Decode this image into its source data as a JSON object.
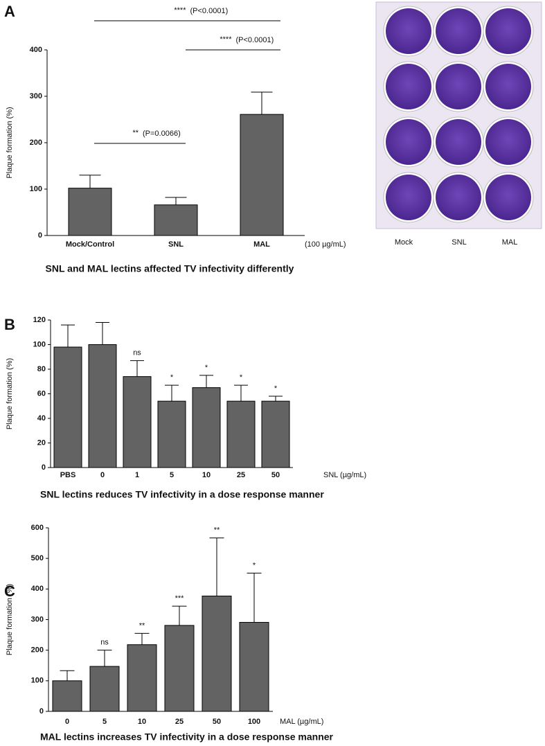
{
  "chart_data": [
    {
      "type": "bar",
      "panel": "A",
      "ylabel": "Plaque formation (%)",
      "categories": [
        "Mock/Control",
        "SNL",
        "MAL"
      ],
      "values": [
        102,
        66,
        261
      ],
      "errors": [
        28,
        16,
        48
      ],
      "color": "#636363",
      "xlabel": "(100 µg/mL)",
      "ylim": [
        0,
        400
      ],
      "yticks": [
        0,
        100,
        200,
        300,
        400
      ],
      "caption": "SNL and MAL lectins affected TV infectivity differently",
      "comparisons": [
        {
          "stars": "**",
          "p": "(P=0.0066)"
        },
        {
          "stars": "****",
          "p": "(P<0.0001)"
        },
        {
          "stars": "****",
          "p": "(P<0.0001)"
        }
      ],
      "plate_labels": [
        "Mock",
        "SNL",
        "MAL"
      ]
    },
    {
      "type": "bar",
      "panel": "B",
      "ylabel": "Plaque formation (%)",
      "categories": [
        "PBS",
        "0",
        "1",
        "5",
        "10",
        "25",
        "50"
      ],
      "values": [
        98,
        100,
        74,
        54,
        65,
        54,
        54
      ],
      "errors": [
        18,
        18,
        13,
        13,
        10,
        13,
        4
      ],
      "annotations": [
        null,
        null,
        "ns",
        "*",
        "*",
        "*",
        "*"
      ],
      "color": "#636363",
      "xlabel": "SNL (µg/mL)",
      "ylim": [
        0,
        120
      ],
      "yticks": [
        0,
        20,
        40,
        60,
        80,
        100,
        120
      ],
      "caption": "SNL lectins reduces TV infectivity in a dose response manner"
    },
    {
      "type": "bar",
      "panel": "C",
      "ylabel": "Plaque formation (%)",
      "categories": [
        "0",
        "5",
        "10",
        "25",
        "50",
        "100"
      ],
      "values": [
        100,
        147,
        218,
        281,
        377,
        291
      ],
      "errors": [
        33,
        53,
        37,
        63,
        190,
        161
      ],
      "annotations": [
        null,
        "ns",
        "**",
        "***",
        "**",
        "*"
      ],
      "color": "#636363",
      "xlabel": "MAL (µg/mL)",
      "ylim": [
        0,
        600
      ],
      "yticks": [
        0,
        100,
        200,
        300,
        400,
        500,
        600
      ],
      "caption": "MAL lectins increases TV infectivity in a dose response manner"
    }
  ]
}
